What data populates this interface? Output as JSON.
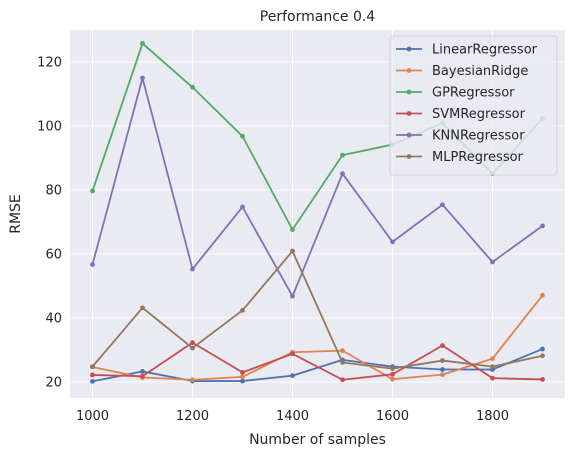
{
  "chart_data": {
    "type": "line",
    "title": "Performance 0.4",
    "xlabel": "Number of samples",
    "ylabel": "RMSE",
    "x": [
      1000,
      1100,
      1200,
      1300,
      1400,
      1500,
      1600,
      1700,
      1800,
      1900
    ],
    "xlim": [
      955,
      1945
    ],
    "ylim": [
      15,
      130
    ],
    "xticks": [
      1000,
      1200,
      1400,
      1600,
      1800
    ],
    "yticks": [
      20,
      40,
      60,
      80,
      100,
      120
    ],
    "grid": true,
    "legend_position": "top-right",
    "background": "#eaeaf2",
    "series": [
      {
        "name": "LinearRegressor",
        "color": "#4c72b0",
        "values": [
          20.2,
          23.3,
          20.3,
          20.3,
          22.0,
          26.9,
          24.8,
          23.9,
          23.9,
          30.3
        ]
      },
      {
        "name": "BayesianRidge",
        "color": "#dd8452",
        "values": [
          24.7,
          21.4,
          20.7,
          21.6,
          29.3,
          29.8,
          20.9,
          22.3,
          27.3,
          47.1
        ]
      },
      {
        "name": "GPRegressor",
        "color": "#55a868",
        "values": [
          79.7,
          125.8,
          112.1,
          96.8,
          67.6,
          90.9,
          94.2,
          100.9,
          85.1,
          102.3
        ]
      },
      {
        "name": "SVMRegressor",
        "color": "#c44e52",
        "values": [
          22.2,
          21.8,
          32.3,
          23.0,
          28.8,
          20.7,
          22.4,
          31.4,
          21.2,
          20.8
        ]
      },
      {
        "name": "KNNRegressor",
        "color": "#8172b3",
        "values": [
          56.7,
          115.0,
          55.3,
          74.7,
          46.8,
          85.1,
          63.8,
          75.4,
          57.5,
          68.8
        ]
      },
      {
        "name": "MLPRegressor",
        "color": "#937860",
        "values": [
          24.8,
          43.2,
          30.6,
          42.4,
          60.9,
          26.1,
          24.2,
          26.7,
          24.8,
          28.2
        ]
      }
    ]
  }
}
